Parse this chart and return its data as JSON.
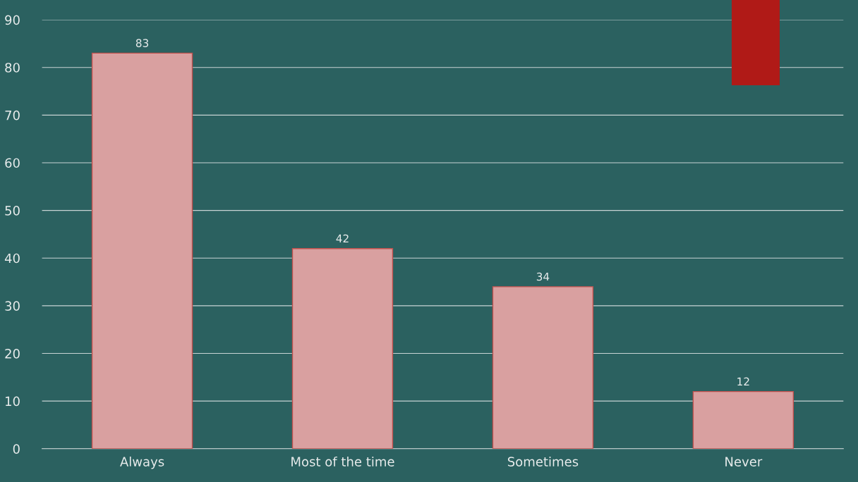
{
  "chart_data": {
    "type": "bar",
    "categories": [
      "Always",
      "Most of the time",
      "Sometimes",
      "Never"
    ],
    "values": [
      83,
      42,
      34,
      12
    ],
    "color": "#d9a0a0",
    "ylim": [
      0,
      90
    ],
    "yticks": [
      0,
      10,
      20,
      30,
      40,
      50,
      60,
      70,
      80,
      90
    ],
    "grid": "y",
    "data_labels": true
  }
}
